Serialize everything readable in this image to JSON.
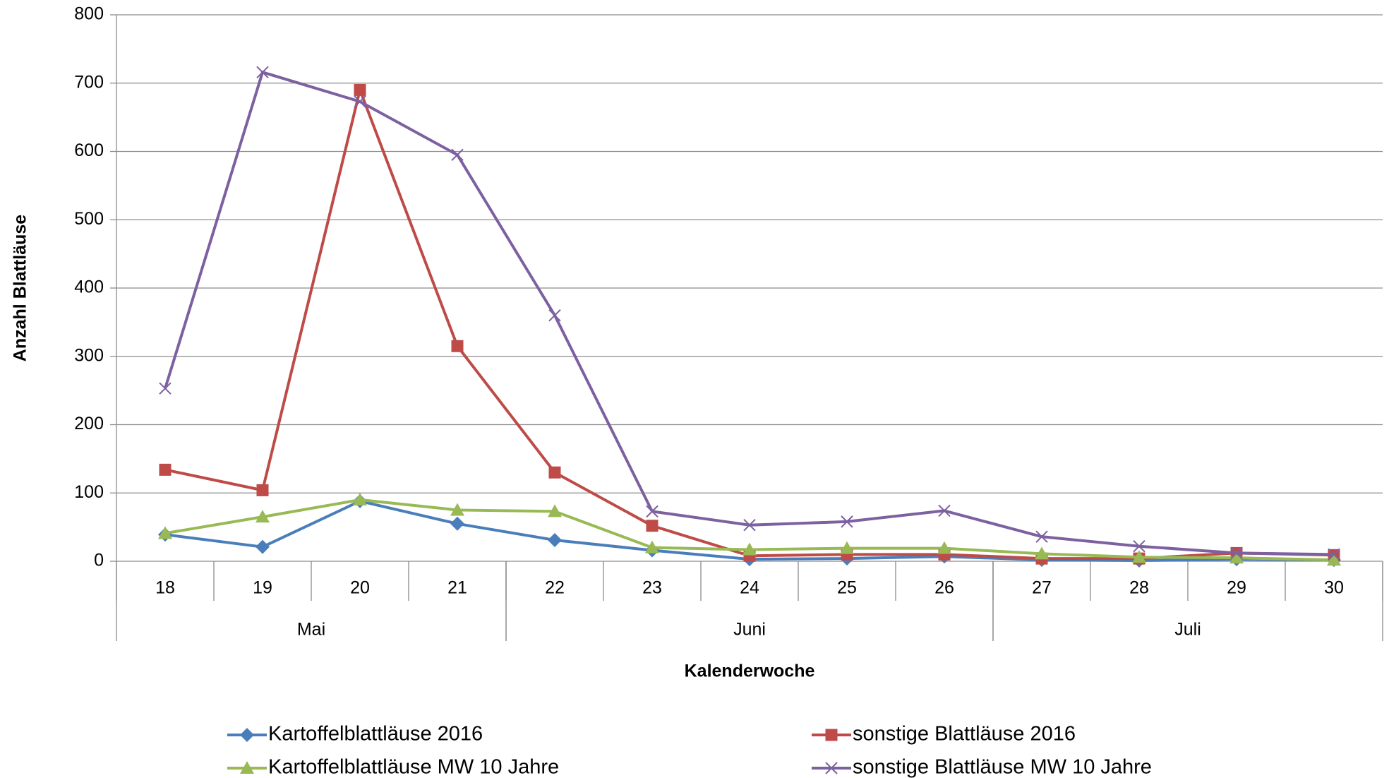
{
  "chart_data": {
    "type": "line",
    "y_label": "Anzahl Blattläuse",
    "x_label": "Kalenderwoche",
    "categories": [
      "18",
      "19",
      "20",
      "21",
      "22",
      "23",
      "24",
      "25",
      "26",
      "27",
      "28",
      "29",
      "30"
    ],
    "groups": [
      {
        "name": "Mai",
        "from": "18",
        "to": "21"
      },
      {
        "name": "Juni",
        "from": "22",
        "to": "26"
      },
      {
        "name": "Juli",
        "from": "27",
        "to": "30"
      }
    ],
    "series": [
      {
        "name": "Kartoffelblattläuse 2016",
        "color": "#4a7ebb",
        "marker": "diamond",
        "values": [
          39,
          21,
          88,
          55,
          31,
          16,
          3,
          4,
          7,
          2,
          1,
          3,
          2
        ]
      },
      {
        "name": "sonstige Blattläuse 2016",
        "color": "#be4b48",
        "marker": "square",
        "values": [
          134,
          104,
          690,
          315,
          130,
          52,
          8,
          10,
          10,
          4,
          4,
          12,
          9
        ]
      },
      {
        "name": "Kartoffelblattläuse MW 10 Jahre",
        "color": "#98b954",
        "marker": "triangle",
        "values": [
          41,
          65,
          90,
          75,
          73,
          20,
          17,
          19,
          19,
          11,
          6,
          5,
          2
        ]
      },
      {
        "name": "sonstige Blattläuse MW 10 Jahre",
        "color": "#7d60a0",
        "marker": "x",
        "values": [
          253,
          716,
          673,
          595,
          360,
          73,
          53,
          58,
          74,
          36,
          22,
          12,
          10
        ]
      }
    ],
    "ylim": [
      0,
      800
    ],
    "yticks": [
      0,
      100,
      200,
      300,
      400,
      500,
      600,
      700,
      800
    ],
    "grid": true
  }
}
